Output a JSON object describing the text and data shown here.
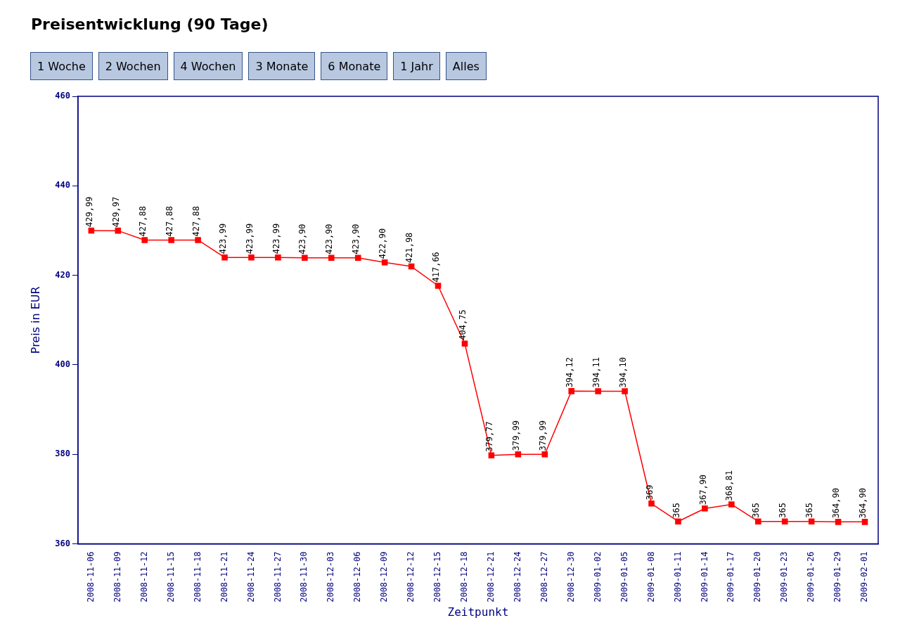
{
  "chart_data": {
    "type": "line",
    "title": "Preisentwicklung (90 Tage)",
    "xlabel": "Zeitpunkt",
    "ylabel": "Preis in EUR",
    "annotations": [
      "1 Woche",
      "2 Wochen",
      "4 Wochen",
      "3 Monate",
      "6 Monate",
      "1 Jahr",
      "Alles"
    ],
    "categories": [
      "2008-11-06",
      "2008-11-09",
      "2008-11-12",
      "2008-11-15",
      "2008-11-18",
      "2008-11-21",
      "2008-11-24",
      "2008-11-27",
      "2008-11-30",
      "2008-12-03",
      "2008-12-06",
      "2008-12-09",
      "2008-12-12",
      "2008-12-15",
      "2008-12-18",
      "2008-12-21",
      "2008-12-24",
      "2008-12-27",
      "2008-12-30",
      "2009-01-02",
      "2009-01-05",
      "2009-01-08",
      "2009-01-11",
      "2009-01-14",
      "2009-01-17",
      "2009-01-20",
      "2009-01-23",
      "2009-01-26",
      "2009-01-29",
      "2009-02-01"
    ],
    "series": [
      {
        "color": "#ff0000",
        "values": [
          429.99,
          429.97,
          427.88,
          427.88,
          427.88,
          423.99,
          423.99,
          423.99,
          423.9,
          423.9,
          423.9,
          422.9,
          421.98,
          417.66,
          404.75,
          379.77,
          379.99,
          379.99,
          394.12,
          394.11,
          394.1,
          369,
          365,
          367.9,
          368.81,
          365,
          365,
          365,
          364.9,
          364.9
        ],
        "value_labels": [
          "429,99",
          "429,97",
          "427,88",
          "427,88",
          "427,88",
          "423,99",
          "423,99",
          "423,99",
          "423,90",
          "423,90",
          "423,90",
          "422,90",
          "421,98",
          "417,66",
          "404,75",
          "379,77",
          "379,99",
          "379,99",
          "394,12",
          "394,11",
          "394,10",
          "369",
          "365",
          "367,90",
          "368,81",
          "365",
          "365",
          "365",
          "364,90",
          "364,90"
        ]
      }
    ],
    "ylim": [
      360,
      460
    ],
    "yticks": [
      360,
      380,
      400,
      420,
      440,
      460
    ],
    "grid": false,
    "legend": false,
    "marker": "square",
    "line_style": "solid"
  }
}
